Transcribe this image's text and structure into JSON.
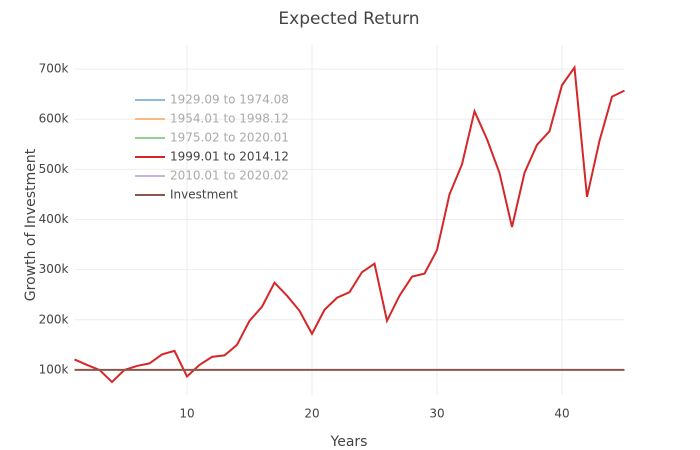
{
  "chart_data": {
    "type": "line",
    "title": "Expected Return",
    "x_label": "Years",
    "y_label": "Growth of Investment",
    "x": [
      1,
      2,
      3,
      4,
      5,
      6,
      7,
      8,
      9,
      10,
      11,
      12,
      13,
      14,
      15,
      16,
      17,
      18,
      19,
      20,
      21,
      22,
      23,
      24,
      25,
      26,
      27,
      28,
      29,
      30,
      31,
      32,
      33,
      34,
      35,
      36,
      37,
      38,
      39,
      40,
      41,
      42,
      43,
      44,
      45
    ],
    "series": [
      {
        "name": "1929.09 to 1974.08",
        "color": "#1f77b4",
        "visible": "legendonly"
      },
      {
        "name": "1954.01 to 1998.12",
        "color": "#ff7f0e",
        "visible": "legendonly"
      },
      {
        "name": "1975.02 to 2020.01",
        "color": "#2ca02c",
        "visible": "legendonly"
      },
      {
        "name": "1999.01 to 2014.12",
        "color": "#d62728",
        "values": [
          121000,
          110000,
          100000,
          76000,
          100000,
          108000,
          113000,
          131000,
          138000,
          87000,
          110000,
          126000,
          129000,
          150000,
          198000,
          226000,
          274000,
          248000,
          218000,
          172000,
          220000,
          244000,
          255000,
          295000,
          312000,
          198000,
          248000,
          286000,
          292000,
          339000,
          450000,
          510000,
          616000,
          560000,
          493000,
          385000,
          493000,
          549000,
          576000,
          668000,
          703000,
          445000,
          557000,
          645000,
          657000
        ]
      },
      {
        "name": "2010.01 to 2020.02",
        "color": "#9467bd",
        "visible": "legendonly"
      },
      {
        "name": "Investment",
        "color": "#8c564b",
        "values": [
          100000,
          100000,
          100000,
          100000,
          100000,
          100000,
          100000,
          100000,
          100000,
          100000,
          100000,
          100000,
          100000,
          100000,
          100000,
          100000,
          100000,
          100000,
          100000,
          100000,
          100000,
          100000,
          100000,
          100000,
          100000,
          100000,
          100000,
          100000,
          100000,
          100000,
          100000,
          100000,
          100000,
          100000,
          100000,
          100000,
          100000,
          100000,
          100000,
          100000,
          100000,
          100000,
          100000,
          100000,
          100000
        ]
      }
    ],
    "xlim": [
      1,
      45
    ],
    "xticks": [
      10,
      20,
      30,
      40
    ],
    "ylim": [
      50000,
      748000
    ],
    "yticks": [
      {
        "value": 100000,
        "label": "100k"
      },
      {
        "value": 200000,
        "label": "200k"
      },
      {
        "value": 300000,
        "label": "300k"
      },
      {
        "value": 400000,
        "label": "400k"
      },
      {
        "value": 500000,
        "label": "500k"
      },
      {
        "value": 600000,
        "label": "600k"
      },
      {
        "value": 700000,
        "label": "700k"
      }
    ],
    "grid": true,
    "legend": "top-left"
  }
}
